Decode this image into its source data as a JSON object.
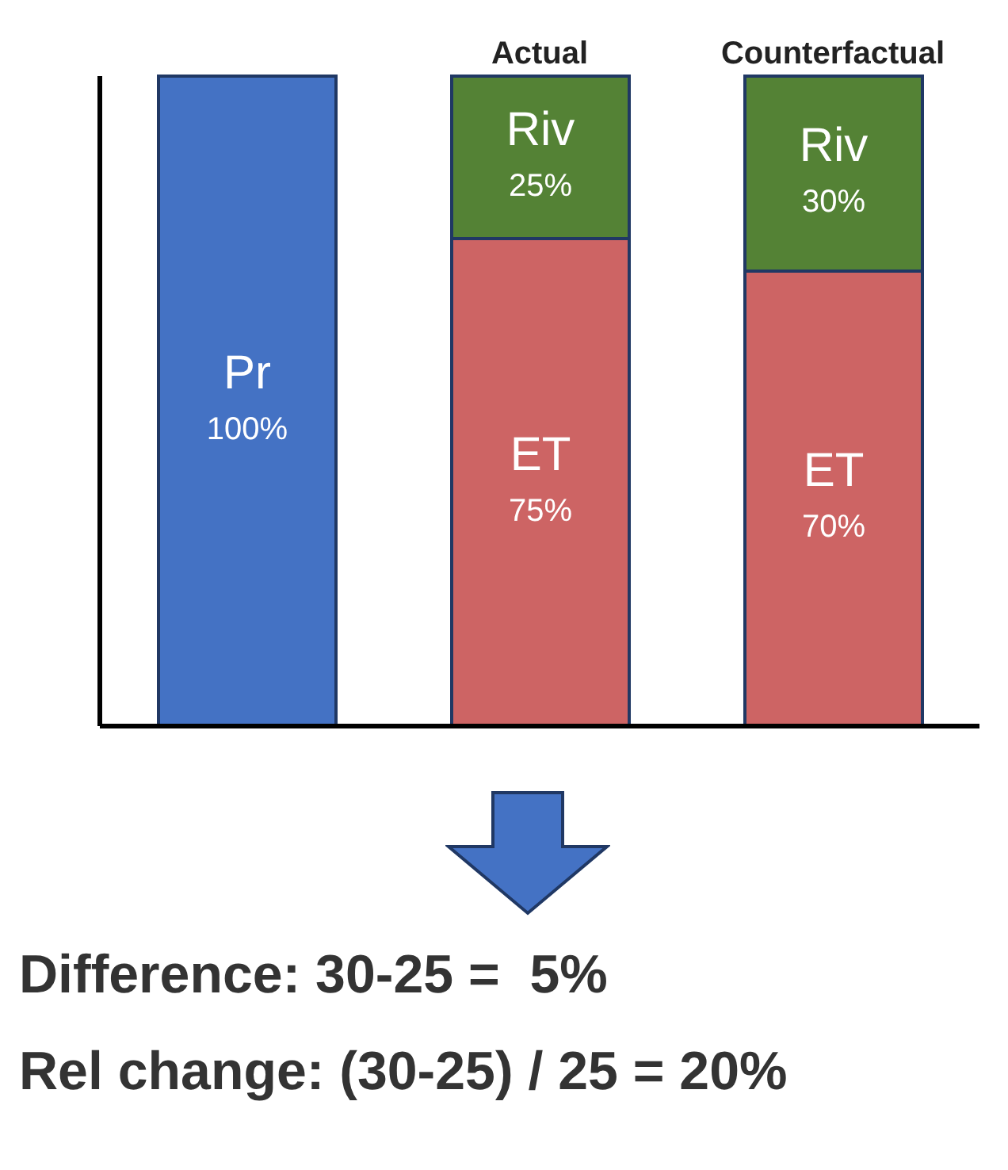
{
  "chart_data": {
    "type": "bar",
    "stacked": true,
    "categories": [
      null,
      "Actual",
      "Counterfactual"
    ],
    "series": [
      {
        "name": "Pr",
        "color": "#4472c4",
        "values": [
          100,
          null,
          null
        ],
        "value_labels": [
          "100%",
          null,
          null
        ]
      },
      {
        "name": "ET",
        "color": "#cd6464",
        "values": [
          null,
          75,
          70
        ],
        "value_labels": [
          null,
          "75%",
          "70%"
        ]
      },
      {
        "name": "Riv",
        "color": "#548235",
        "values": [
          null,
          25,
          30
        ],
        "value_labels": [
          null,
          "25%",
          "30%"
        ]
      }
    ],
    "legend": false,
    "annotations": [
      "Difference: 30-25 =  5%",
      "Rel change: (30-25) / 25 = 20%"
    ]
  }
}
